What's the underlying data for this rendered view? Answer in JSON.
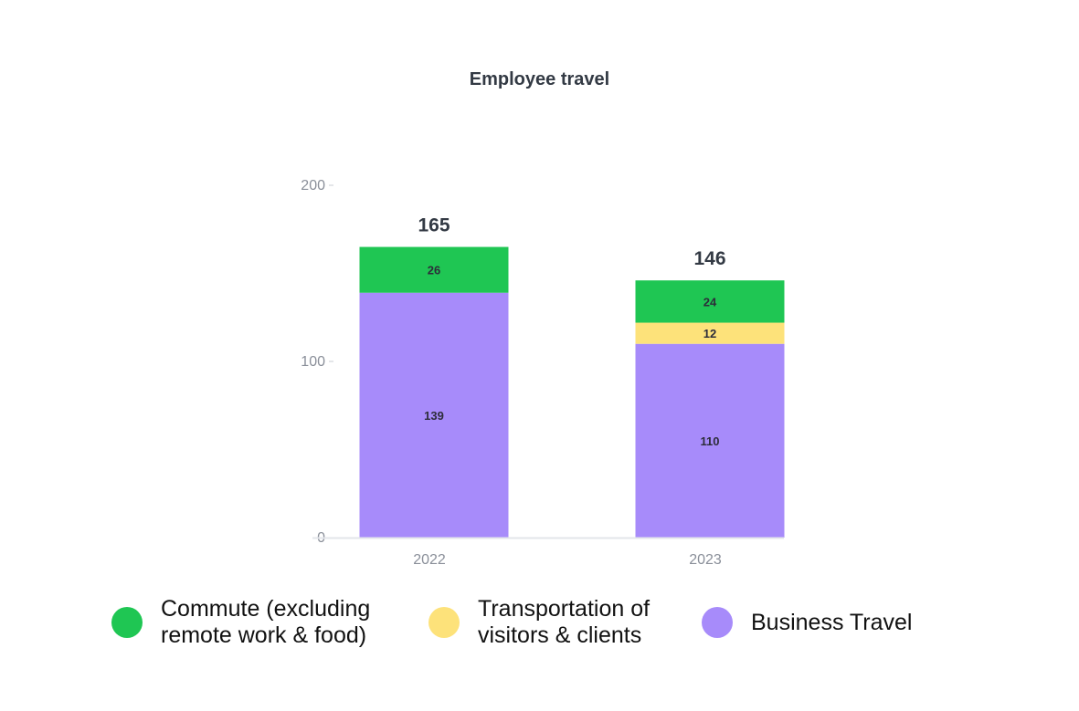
{
  "chart_data": {
    "type": "bar",
    "stacked": true,
    "title": "Employee travel",
    "categories": [
      "2022",
      "2023"
    ],
    "series": [
      {
        "name": "Business Travel",
        "values": [
          139,
          110
        ],
        "color": "#a78bfa"
      },
      {
        "name": "Transportation of\nvisitors & clients",
        "values": [
          0,
          12
        ],
        "color": "#fde27a"
      },
      {
        "name": "Commute (excluding\nremote work & food)",
        "values": [
          26,
          24
        ],
        "color": "#1fc653"
      }
    ],
    "totals": [
      "165",
      "146"
    ],
    "ylim": [
      0,
      200
    ],
    "yticks": [
      "0",
      "100",
      "200"
    ],
    "legend_position": "bottom",
    "legend_order": [
      2,
      1,
      0
    ],
    "grid": false
  }
}
